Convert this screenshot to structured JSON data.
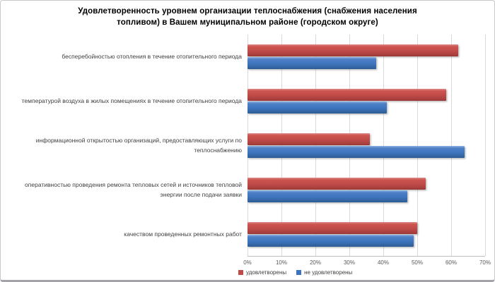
{
  "title": "Удовлетворенность уровнем организации теплоснабжения (снабжения населения топливом) в Вашем муниципальном районе (городском округе)",
  "chart_data": {
    "type": "bar",
    "orientation": "horizontal",
    "title": "Удовлетворенность уровнем организации теплоснабжения (снабжения населения топливом) в Вашем муниципальном районе (городском округе)",
    "categories": [
      "бесперебойностью  отопления в течение отопительного периода",
      "температурой  воздуха в жилых помещениях в течение отопительного периода",
      "информационной открытостью  организаций, предоставляющих услуги по теплоснабжению",
      "оперативностью проведения ремонта тепловых сетей и источников тепловой энергии после подачи заявки",
      "качеством проведенных ремонтных работ"
    ],
    "series": [
      {
        "name": "удовлетворены",
        "color": "#be4b48",
        "values": [
          62,
          58.5,
          36,
          52.5,
          50
        ]
      },
      {
        "name": "не удовлетворены",
        "color": "#3e74bf",
        "values": [
          38,
          41,
          64,
          47,
          49
        ]
      }
    ],
    "xlim": [
      0,
      70
    ],
    "xticks": [
      "0%",
      "10%",
      "20%",
      "30%",
      "40%",
      "50%",
      "60%",
      "70%"
    ],
    "grid": "vertical-only",
    "legend_position": "bottom",
    "colors": {
      "satisfied_red": "#be4b48",
      "not_satisfied_blue": "#3e74bf",
      "gridline": "#d9d9d9",
      "axis_line": "#bfbfbf",
      "tick_text": "#595959",
      "category_text": "#3f3f3f",
      "title_text": "#000000"
    }
  }
}
